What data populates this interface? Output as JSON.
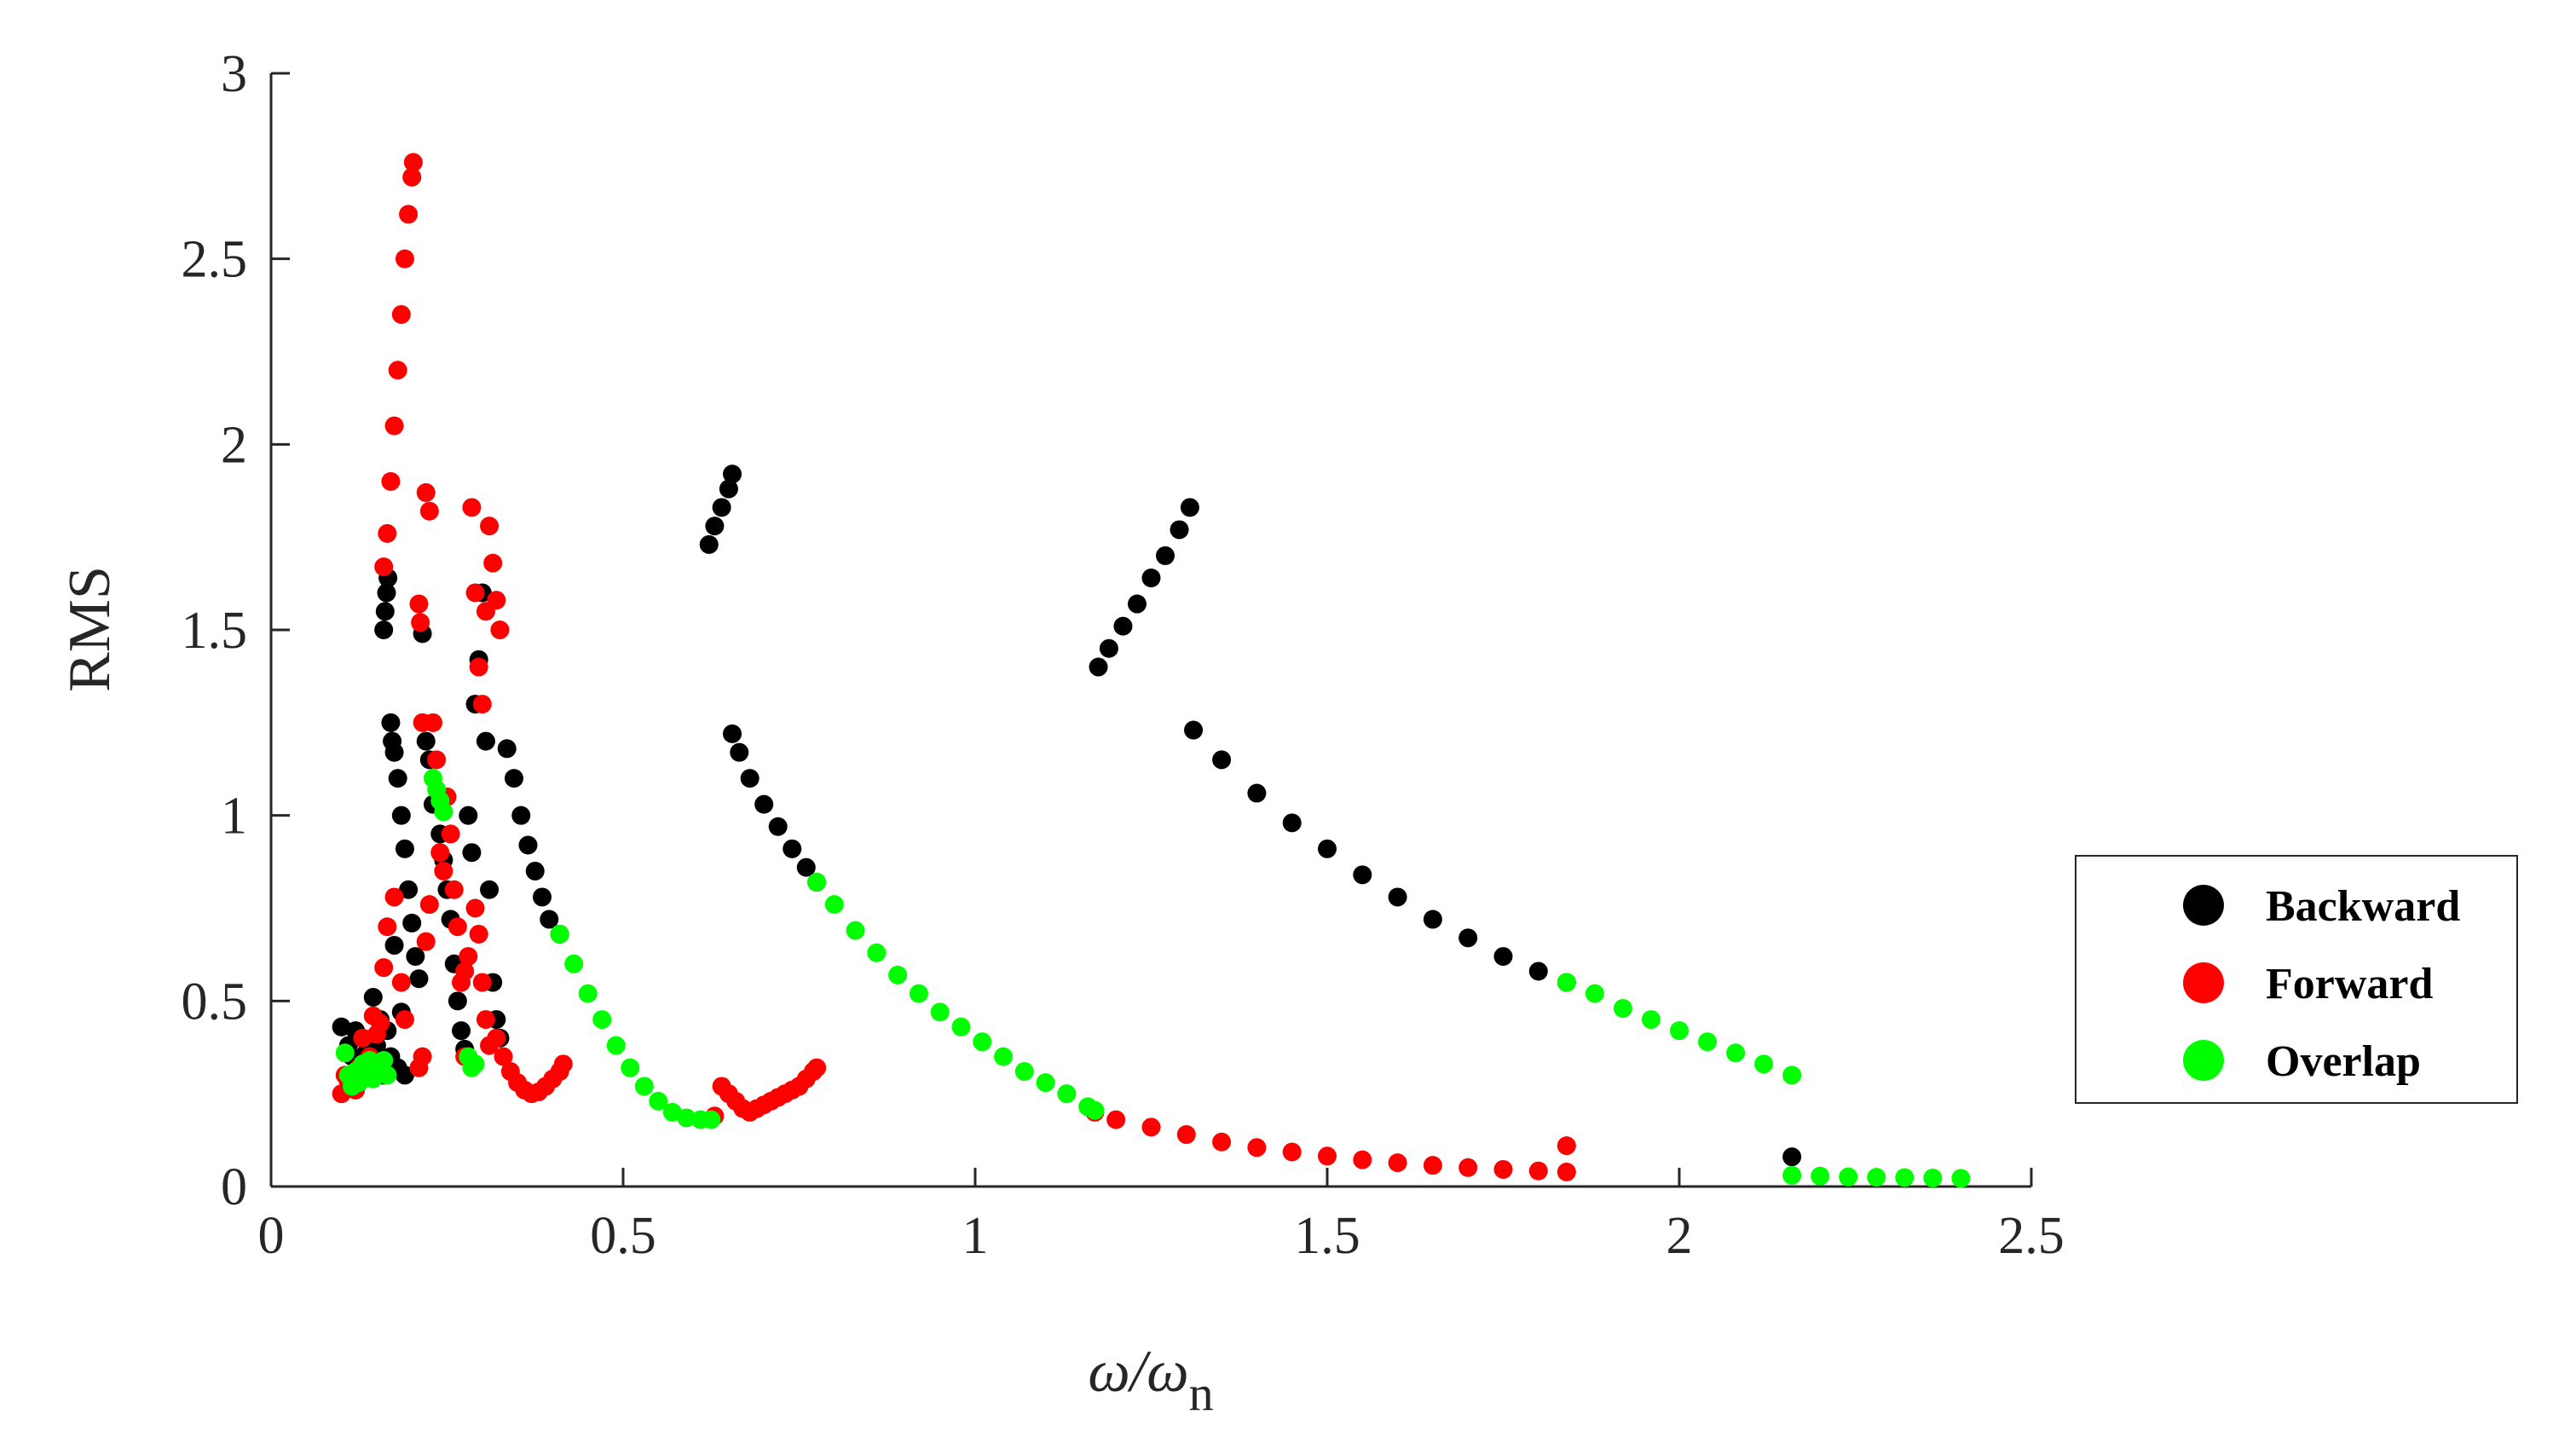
{
  "chart_data": {
    "type": "scatter",
    "xlabel": "ω/ω",
    "xlabel_sub": "n",
    "ylabel": "RMS",
    "xlim": [
      0,
      2.5
    ],
    "ylim": [
      0,
      3
    ],
    "xticks": [
      "0",
      "0.5",
      "1",
      "1.5",
      "2",
      "2.5"
    ],
    "yticks": [
      "0",
      "0.5",
      "1",
      "1.5",
      "2",
      "2.5",
      "3"
    ],
    "legend_position": "right",
    "grid": false,
    "series": [
      {
        "name": "Backward",
        "color": "#000000",
        "points": [
          [
            0.1,
            0.43
          ],
          [
            0.11,
            0.38
          ],
          [
            0.115,
            0.35
          ],
          [
            0.12,
            0.42
          ],
          [
            0.125,
            0.33
          ],
          [
            0.13,
            0.4
          ],
          [
            0.135,
            0.36
          ],
          [
            0.14,
            0.3
          ],
          [
            0.145,
            0.51
          ],
          [
            0.15,
            0.38
          ],
          [
            0.155,
            0.45
          ],
          [
            0.16,
            0.3
          ],
          [
            0.165,
            0.42
          ],
          [
            0.17,
            0.35
          ],
          [
            0.175,
            0.65
          ],
          [
            0.18,
            0.32
          ],
          [
            0.185,
            0.47
          ],
          [
            0.19,
            0.3
          ],
          [
            0.16,
            1.5
          ],
          [
            0.162,
            1.55
          ],
          [
            0.164,
            1.6
          ],
          [
            0.166,
            1.64
          ],
          [
            0.17,
            1.25
          ],
          [
            0.172,
            1.2
          ],
          [
            0.175,
            1.17
          ],
          [
            0.18,
            1.1
          ],
          [
            0.185,
            1.0
          ],
          [
            0.19,
            0.91
          ],
          [
            0.195,
            0.8
          ],
          [
            0.2,
            0.71
          ],
          [
            0.205,
            0.62
          ],
          [
            0.21,
            0.56
          ],
          [
            0.215,
            1.49
          ],
          [
            0.22,
            1.2
          ],
          [
            0.225,
            1.15
          ],
          [
            0.23,
            1.03
          ],
          [
            0.24,
            0.95
          ],
          [
            0.245,
            0.88
          ],
          [
            0.25,
            0.8
          ],
          [
            0.255,
            0.72
          ],
          [
            0.26,
            0.6
          ],
          [
            0.265,
            0.5
          ],
          [
            0.27,
            0.42
          ],
          [
            0.275,
            0.37
          ],
          [
            0.28,
            1.0
          ],
          [
            0.285,
            0.9
          ],
          [
            0.29,
            1.3
          ],
          [
            0.295,
            1.42
          ],
          [
            0.3,
            1.6
          ],
          [
            0.305,
            1.2
          ],
          [
            0.31,
            0.8
          ],
          [
            0.315,
            0.55
          ],
          [
            0.32,
            0.45
          ],
          [
            0.325,
            0.4
          ],
          [
            0.335,
            1.18
          ],
          [
            0.345,
            1.1
          ],
          [
            0.355,
            1.0
          ],
          [
            0.365,
            0.92
          ],
          [
            0.375,
            0.85
          ],
          [
            0.385,
            0.78
          ],
          [
            0.395,
            0.72
          ],
          [
            0.41,
            0.68
          ],
          [
            0.622,
            1.73
          ],
          [
            0.63,
            1.78
          ],
          [
            0.64,
            1.83
          ],
          [
            0.65,
            1.88
          ],
          [
            0.655,
            1.92
          ],
          [
            0.655,
            1.22
          ],
          [
            0.665,
            1.17
          ],
          [
            0.68,
            1.1
          ],
          [
            0.7,
            1.03
          ],
          [
            0.72,
            0.97
          ],
          [
            0.74,
            0.91
          ],
          [
            0.76,
            0.86
          ],
          [
            0.775,
            0.82
          ],
          [
            1.175,
            1.4
          ],
          [
            1.19,
            1.45
          ],
          [
            1.21,
            1.51
          ],
          [
            1.23,
            1.57
          ],
          [
            1.25,
            1.64
          ],
          [
            1.27,
            1.7
          ],
          [
            1.29,
            1.77
          ],
          [
            1.305,
            1.83
          ],
          [
            1.31,
            1.23
          ],
          [
            1.35,
            1.15
          ],
          [
            1.4,
            1.06
          ],
          [
            1.45,
            0.98
          ],
          [
            1.5,
            0.91
          ],
          [
            1.55,
            0.84
          ],
          [
            1.6,
            0.78
          ],
          [
            1.65,
            0.72
          ],
          [
            1.7,
            0.67
          ],
          [
            1.75,
            0.62
          ],
          [
            1.8,
            0.58
          ],
          [
            1.84,
            0.55
          ],
          [
            2.16,
            0.08
          ]
        ]
      },
      {
        "name": "Forward",
        "color": "#ff0000",
        "points": [
          [
            0.1,
            0.25
          ],
          [
            0.105,
            0.3
          ],
          [
            0.11,
            0.28
          ],
          [
            0.12,
            0.26
          ],
          [
            0.125,
            0.32
          ],
          [
            0.13,
            0.4
          ],
          [
            0.14,
            0.35
          ],
          [
            0.145,
            0.46
          ],
          [
            0.15,
            0.41
          ],
          [
            0.155,
            0.44
          ],
          [
            0.16,
            0.59
          ],
          [
            0.165,
            0.7
          ],
          [
            0.175,
            0.78
          ],
          [
            0.185,
            0.55
          ],
          [
            0.19,
            0.45
          ],
          [
            0.16,
            1.67
          ],
          [
            0.165,
            1.76
          ],
          [
            0.17,
            1.9
          ],
          [
            0.175,
            2.05
          ],
          [
            0.18,
            2.2
          ],
          [
            0.185,
            2.35
          ],
          [
            0.19,
            2.5
          ],
          [
            0.195,
            2.62
          ],
          [
            0.2,
            2.72
          ],
          [
            0.202,
            2.76
          ],
          [
            0.21,
            1.57
          ],
          [
            0.212,
            1.52
          ],
          [
            0.215,
            1.25
          ],
          [
            0.22,
            1.87
          ],
          [
            0.225,
            1.82
          ],
          [
            0.23,
            1.25
          ],
          [
            0.235,
            1.15
          ],
          [
            0.24,
            0.9
          ],
          [
            0.245,
            0.85
          ],
          [
            0.25,
            1.05
          ],
          [
            0.255,
            0.95
          ],
          [
            0.26,
            0.8
          ],
          [
            0.265,
            0.7
          ],
          [
            0.27,
            0.55
          ],
          [
            0.275,
            0.35
          ],
          [
            0.22,
            0.66
          ],
          [
            0.225,
            0.76
          ],
          [
            0.21,
            0.32
          ],
          [
            0.215,
            0.35
          ],
          [
            0.285,
            1.83
          ],
          [
            0.29,
            1.6
          ],
          [
            0.295,
            1.4
          ],
          [
            0.3,
            1.3
          ],
          [
            0.305,
            1.55
          ],
          [
            0.31,
            1.78
          ],
          [
            0.315,
            1.68
          ],
          [
            0.32,
            1.58
          ],
          [
            0.325,
            1.5
          ],
          [
            0.29,
            0.75
          ],
          [
            0.295,
            0.68
          ],
          [
            0.3,
            0.55
          ],
          [
            0.305,
            0.45
          ],
          [
            0.31,
            0.38
          ],
          [
            0.28,
            0.62
          ],
          [
            0.275,
            0.58
          ],
          [
            0.32,
            0.4
          ],
          [
            0.33,
            0.35
          ],
          [
            0.34,
            0.31
          ],
          [
            0.35,
            0.28
          ],
          [
            0.36,
            0.26
          ],
          [
            0.37,
            0.25
          ],
          [
            0.38,
            0.255
          ],
          [
            0.39,
            0.27
          ],
          [
            0.4,
            0.29
          ],
          [
            0.41,
            0.31
          ],
          [
            0.415,
            0.33
          ],
          [
            0.63,
            0.19
          ],
          [
            0.64,
            0.27
          ],
          [
            0.65,
            0.25
          ],
          [
            0.66,
            0.23
          ],
          [
            0.67,
            0.21
          ],
          [
            0.68,
            0.2
          ],
          [
            0.69,
            0.21
          ],
          [
            0.7,
            0.22
          ],
          [
            0.71,
            0.23
          ],
          [
            0.72,
            0.24
          ],
          [
            0.73,
            0.25
          ],
          [
            0.74,
            0.26
          ],
          [
            0.75,
            0.27
          ],
          [
            0.76,
            0.29
          ],
          [
            0.77,
            0.31
          ],
          [
            0.775,
            0.32
          ],
          [
            1.17,
            0.2
          ],
          [
            1.2,
            0.18
          ],
          [
            1.25,
            0.16
          ],
          [
            1.3,
            0.14
          ],
          [
            1.35,
            0.12
          ],
          [
            1.4,
            0.105
          ],
          [
            1.45,
            0.093
          ],
          [
            1.5,
            0.082
          ],
          [
            1.55,
            0.072
          ],
          [
            1.6,
            0.064
          ],
          [
            1.65,
            0.057
          ],
          [
            1.7,
            0.051
          ],
          [
            1.75,
            0.046
          ],
          [
            1.8,
            0.042
          ],
          [
            1.84,
            0.039
          ],
          [
            1.84,
            0.11
          ]
        ]
      },
      {
        "name": "Overlap",
        "color": "#00ff00",
        "points": [
          [
            0.105,
            0.36
          ],
          [
            0.11,
            0.3
          ],
          [
            0.115,
            0.27
          ],
          [
            0.12,
            0.31
          ],
          [
            0.125,
            0.28
          ],
          [
            0.13,
            0.33
          ],
          [
            0.135,
            0.3
          ],
          [
            0.14,
            0.34
          ],
          [
            0.145,
            0.29
          ],
          [
            0.15,
            0.33
          ],
          [
            0.155,
            0.31
          ],
          [
            0.16,
            0.34
          ],
          [
            0.165,
            0.3
          ],
          [
            0.23,
            1.1
          ],
          [
            0.235,
            1.07
          ],
          [
            0.24,
            1.04
          ],
          [
            0.245,
            1.01
          ],
          [
            0.28,
            0.35
          ],
          [
            0.285,
            0.32
          ],
          [
            0.29,
            0.33
          ],
          [
            0.41,
            0.68
          ],
          [
            0.43,
            0.6
          ],
          [
            0.45,
            0.52
          ],
          [
            0.47,
            0.45
          ],
          [
            0.49,
            0.38
          ],
          [
            0.51,
            0.32
          ],
          [
            0.53,
            0.27
          ],
          [
            0.55,
            0.23
          ],
          [
            0.57,
            0.2
          ],
          [
            0.59,
            0.185
          ],
          [
            0.61,
            0.18
          ],
          [
            0.625,
            0.18
          ],
          [
            0.775,
            0.82
          ],
          [
            0.8,
            0.76
          ],
          [
            0.83,
            0.69
          ],
          [
            0.86,
            0.63
          ],
          [
            0.89,
            0.57
          ],
          [
            0.92,
            0.52
          ],
          [
            0.95,
            0.47
          ],
          [
            0.98,
            0.43
          ],
          [
            1.01,
            0.39
          ],
          [
            1.04,
            0.35
          ],
          [
            1.07,
            0.31
          ],
          [
            1.1,
            0.28
          ],
          [
            1.13,
            0.25
          ],
          [
            1.16,
            0.215
          ],
          [
            1.17,
            0.205
          ],
          [
            1.84,
            0.55
          ],
          [
            1.88,
            0.52
          ],
          [
            1.92,
            0.48
          ],
          [
            1.96,
            0.45
          ],
          [
            2.0,
            0.42
          ],
          [
            2.04,
            0.39
          ],
          [
            2.08,
            0.36
          ],
          [
            2.12,
            0.33
          ],
          [
            2.16,
            0.3
          ],
          [
            2.16,
            0.03
          ],
          [
            2.2,
            0.028
          ],
          [
            2.24,
            0.026
          ],
          [
            2.28,
            0.025
          ],
          [
            2.32,
            0.024
          ],
          [
            2.36,
            0.023
          ],
          [
            2.4,
            0.022
          ]
        ]
      }
    ]
  }
}
